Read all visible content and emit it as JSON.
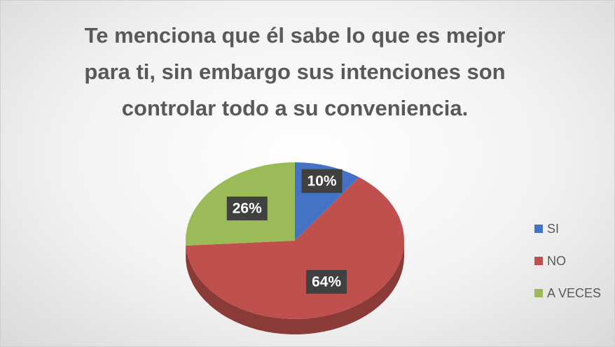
{
  "chart_data": {
    "type": "pie3d",
    "title": "Te menciona que él sabe lo que es mejor para ti, sin embargo sus intenciones son controlar todo a su conveniencia.",
    "categories": [
      "SI",
      "NO",
      "A VECES"
    ],
    "values": [
      10,
      64,
      26
    ],
    "value_labels": [
      "10%",
      "64%",
      "26%"
    ],
    "colors": [
      "#4472c4",
      "#c0504d",
      "#9bbb59"
    ],
    "legend": "right"
  }
}
